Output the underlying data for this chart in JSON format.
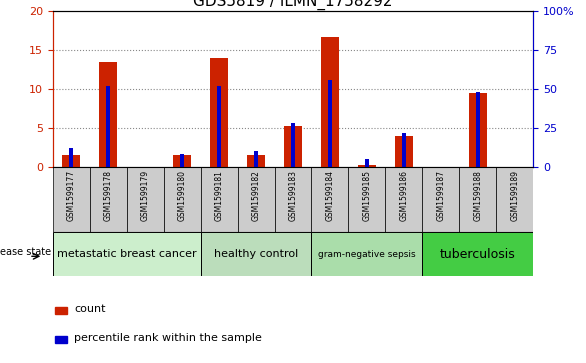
{
  "title": "GDS5819 / ILMN_1758292",
  "samples": [
    "GSM1599177",
    "GSM1599178",
    "GSM1599179",
    "GSM1599180",
    "GSM1599181",
    "GSM1599182",
    "GSM1599183",
    "GSM1599184",
    "GSM1599185",
    "GSM1599186",
    "GSM1599187",
    "GSM1599188",
    "GSM1599189"
  ],
  "count_values": [
    1.5,
    13.5,
    0.0,
    1.5,
    14.0,
    1.5,
    5.2,
    16.7,
    0.2,
    4.0,
    0.0,
    9.5,
    0.0
  ],
  "percentile_values": [
    12,
    52,
    0,
    8,
    52,
    10,
    28,
    56,
    5,
    22,
    0,
    48,
    0
  ],
  "ylim_left": [
    0,
    20
  ],
  "ylim_right": [
    0,
    100
  ],
  "yticks_left": [
    0,
    5,
    10,
    15,
    20
  ],
  "yticks_right": [
    0,
    25,
    50,
    75,
    100
  ],
  "ytick_labels_left": [
    "0",
    "5",
    "10",
    "15",
    "20"
  ],
  "ytick_labels_right": [
    "0",
    "25",
    "50",
    "75",
    "100%"
  ],
  "groups": [
    {
      "label": "metastatic breast cancer",
      "start": 0,
      "end": 3,
      "color": "#cceecc",
      "fontsize": 8
    },
    {
      "label": "healthy control",
      "start": 4,
      "end": 6,
      "color": "#bbddbb",
      "fontsize": 8
    },
    {
      "label": "gram-negative sepsis",
      "start": 7,
      "end": 9,
      "color": "#aaddaa",
      "fontsize": 6.5
    },
    {
      "label": "tuberculosis",
      "start": 10,
      "end": 12,
      "color": "#44cc44",
      "fontsize": 9
    }
  ],
  "bar_color": "#cc2200",
  "percentile_color": "#0000cc",
  "left_axis_color": "#cc2200",
  "right_axis_color": "#0000cc",
  "grid_color": "#888888",
  "xtick_bg": "#cccccc",
  "disease_state_label": "disease state",
  "legend_count": "count",
  "legend_percentile": "percentile rank within the sample",
  "bar_width": 0.5,
  "pct_bar_width": 0.12
}
